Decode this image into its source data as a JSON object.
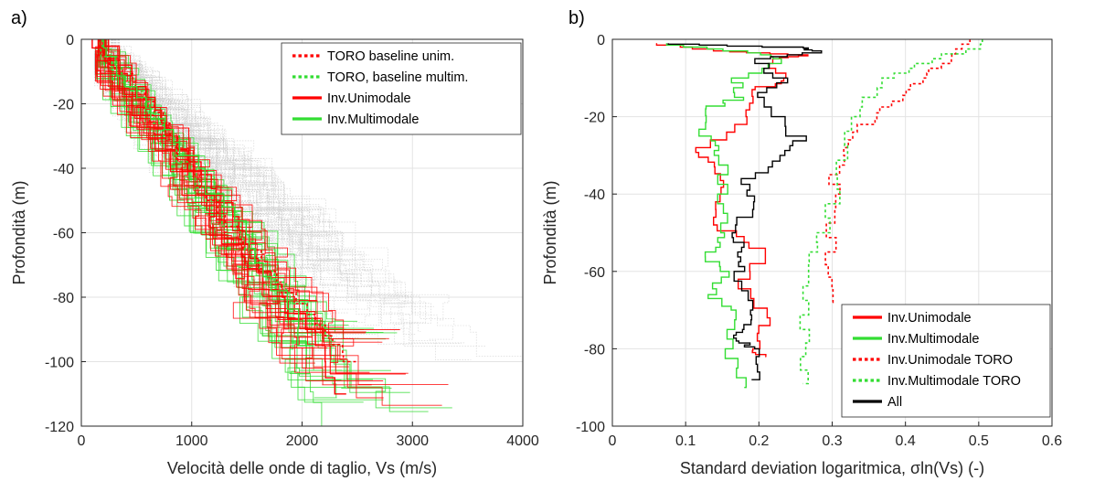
{
  "chart_data": [
    {
      "type": "line",
      "panel_label": "a)",
      "xlabel": "Velocità delle onde di taglio, Vs (m/s)",
      "ylabel": "Profondità (m)",
      "xlim": [
        0,
        4000
      ],
      "ylim": [
        -120,
        0
      ],
      "xticks": [
        "0",
        "1000",
        "2000",
        "3000",
        "4000"
      ],
      "yticks": [
        "0",
        "-20",
        "-40",
        "-60",
        "-80",
        "-100",
        "-120"
      ],
      "grid": true,
      "legend_position": "top-right",
      "colors": {
        "unimodal": "#ff0000",
        "multimodal": "#33dd33",
        "background": "#b4b4b4"
      },
      "series": [
        {
          "name": "TORO baseline unim.",
          "style": "dotted",
          "color": "#ff0000",
          "x": [
            150,
            350,
            550,
            750,
            1000,
            1250,
            1500,
            1750,
            2000,
            2250,
            2500
          ],
          "y": [
            0,
            -8,
            -16,
            -26,
            -38,
            -50,
            -62,
            -72,
            -82,
            -92,
            -100
          ]
        },
        {
          "name": "TORO, baseline multim.",
          "style": "dotted",
          "color": "#33dd33",
          "x": [
            150,
            350,
            550,
            750,
            1000,
            1250,
            1500,
            1750,
            2000,
            2250
          ],
          "y": [
            0,
            -8,
            -16,
            -26,
            -38,
            -50,
            -62,
            -72,
            -82,
            -92
          ]
        },
        {
          "name": "Inv.Unimodale",
          "style": "solid",
          "color": "#ff0000",
          "x": [
            150,
            400,
            650,
            900,
            1150,
            1400,
            1650,
            1900,
            2150,
            2400
          ],
          "y": [
            0,
            -8,
            -18,
            -30,
            -42,
            -55,
            -68,
            -80,
            -95,
            -110
          ]
        },
        {
          "name": "Inv.Multimodale",
          "style": "solid",
          "color": "#33dd33",
          "x": [
            150,
            350,
            600,
            850,
            1100,
            1350,
            1600,
            1850,
            2100
          ],
          "y": [
            0,
            -8,
            -18,
            -28,
            -40,
            -52,
            -65,
            -78,
            -95
          ]
        }
      ]
    },
    {
      "type": "line",
      "panel_label": "b)",
      "xlabel": "Standard deviation logaritmica, σln(Vs) (-)",
      "ylabel": "Profondità (m)",
      "xlim": [
        0,
        0.6
      ],
      "ylim": [
        -100,
        0
      ],
      "xticks": [
        "0",
        "0.1",
        "0.2",
        "0.3",
        "0.4",
        "0.5",
        "0.6"
      ],
      "yticks": [
        "0",
        "-20",
        "-40",
        "-60",
        "-80",
        "-100"
      ],
      "grid": true,
      "legend_position": "bottom-right",
      "series": [
        {
          "name": "Inv.Unimodale",
          "style": "solid",
          "color": "#ff0000",
          "x": [
            0.07,
            0.16,
            0.27,
            0.21,
            0.24,
            0.19,
            0.19,
            0.12,
            0.15,
            0.14,
            0.15,
            0.21,
            0.18,
            0.21,
            0.19,
            0.21
          ],
          "y": [
            -1,
            -3,
            -4,
            -5,
            -10,
            -13,
            -20,
            -28,
            -33,
            -40,
            -48,
            -54,
            -62,
            -72,
            -80,
            -82
          ]
        },
        {
          "name": "Inv.Multimodale",
          "style": "solid",
          "color": "#33dd33",
          "x": [
            0.07,
            0.18,
            0.24,
            0.17,
            0.17,
            0.12,
            0.13,
            0.15,
            0.15,
            0.16,
            0.13,
            0.15,
            0.14,
            0.17,
            0.16,
            0.18
          ],
          "y": [
            -1,
            -3,
            -5,
            -10,
            -15,
            -18,
            -25,
            -30,
            -40,
            -50,
            -55,
            -60,
            -66,
            -70,
            -80,
            -90
          ]
        },
        {
          "name": "Inv.Unimodale TORO",
          "style": "dotted",
          "color": "#ff0000",
          "x": [
            0.49,
            0.46,
            0.42,
            0.38,
            0.34,
            0.31,
            0.3,
            0.3,
            0.3
          ],
          "y": [
            0,
            -5,
            -10,
            -16,
            -22,
            -30,
            -40,
            -55,
            -68
          ]
        },
        {
          "name": "Inv.Multimodale TORO",
          "style": "dotted",
          "color": "#33dd33",
          "x": [
            0.51,
            0.44,
            0.36,
            0.33,
            0.31,
            0.28,
            0.27,
            0.26,
            0.26
          ],
          "y": [
            0,
            -5,
            -10,
            -20,
            -35,
            -50,
            -60,
            -75,
            -89
          ]
        },
        {
          "name": "All",
          "style": "solid",
          "color": "#000000",
          "x": [
            0.07,
            0.26,
            0.28,
            0.2,
            0.23,
            0.2,
            0.26,
            0.23,
            0.18,
            0.19,
            0.16,
            0.18,
            0.17,
            0.19,
            0.17,
            0.18,
            0.2,
            0.19
          ],
          "y": [
            -1,
            -2,
            -3,
            -5,
            -10,
            -15,
            -25,
            -30,
            -36,
            -42,
            -50,
            -55,
            -60,
            -70,
            -75,
            -78,
            -80,
            -88
          ]
        }
      ]
    }
  ]
}
